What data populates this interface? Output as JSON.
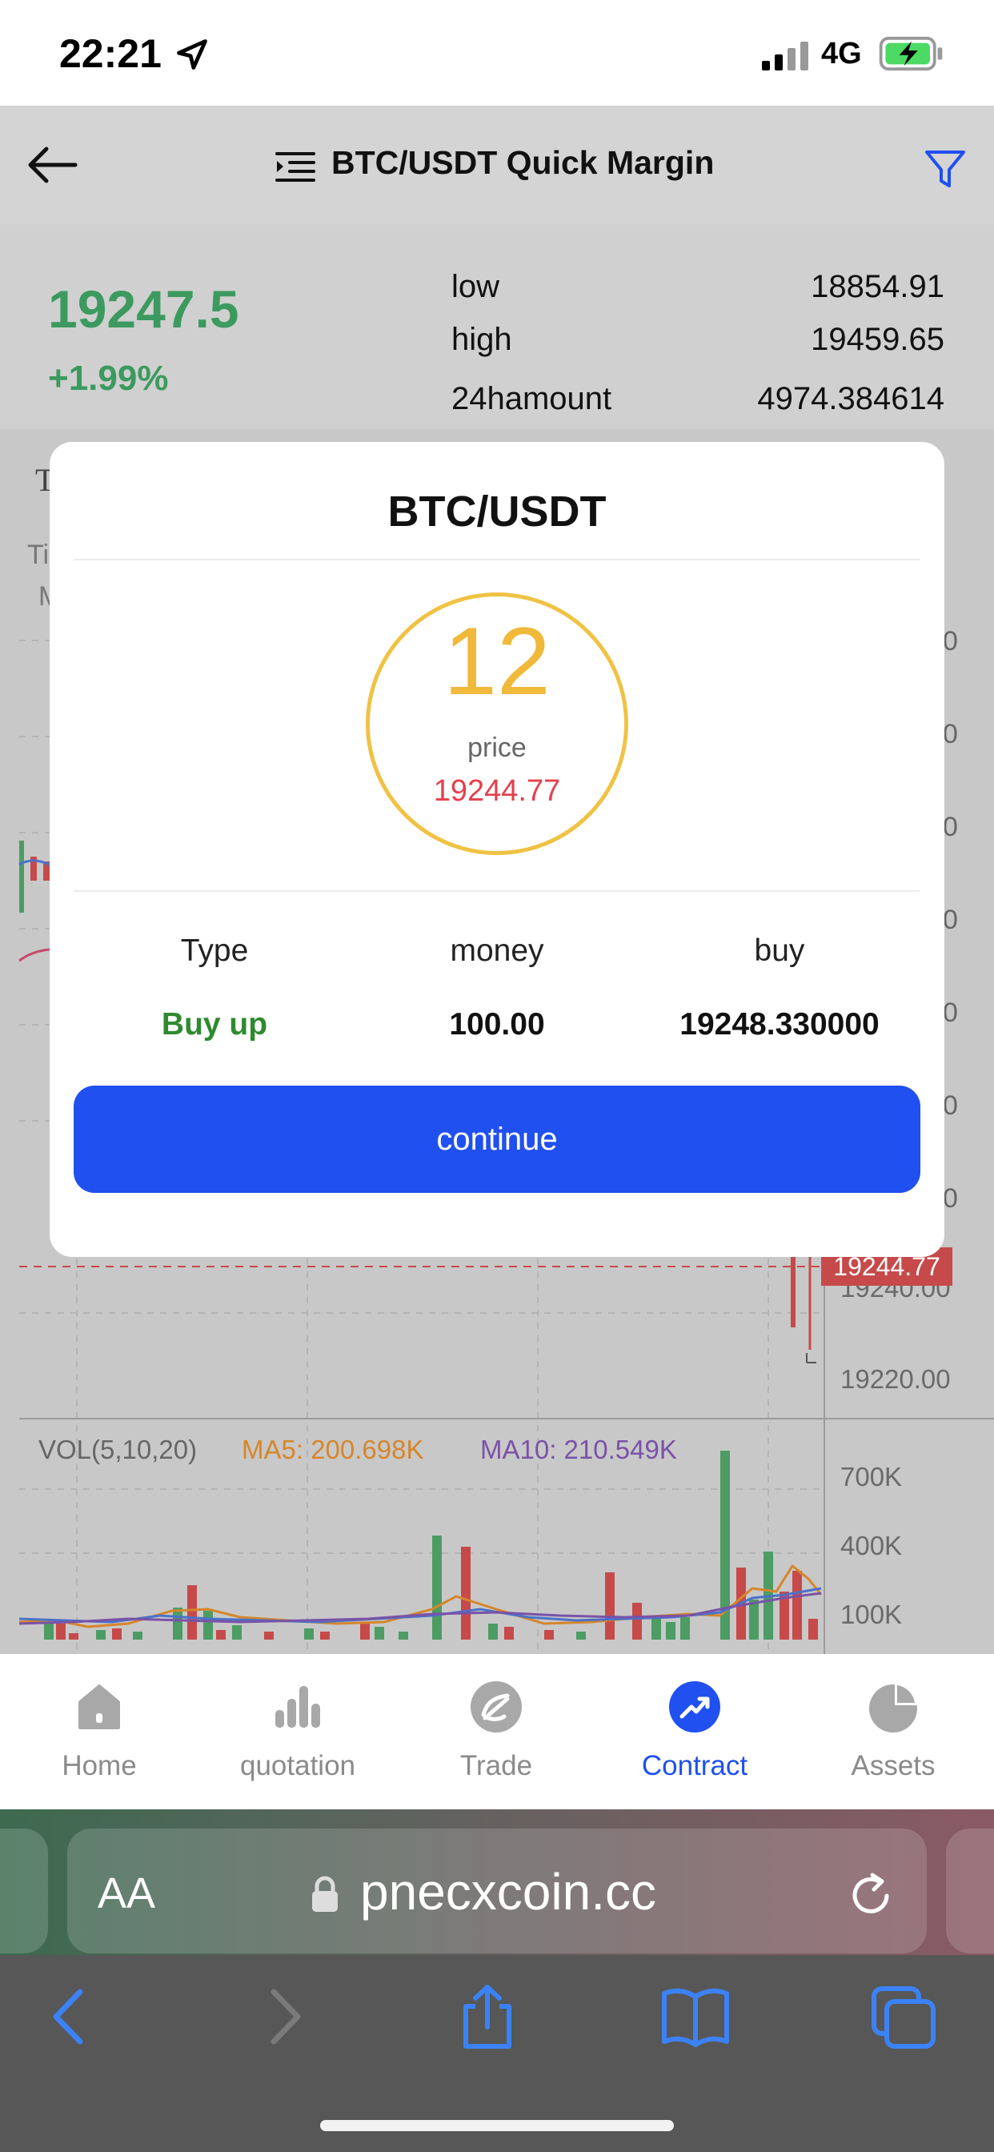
{
  "status_bar": {
    "time": "22:21",
    "network": "4G"
  },
  "header": {
    "title": "BTC/USDT Quick Margin"
  },
  "ticker": {
    "price": "19247.5",
    "change": "+1.99%",
    "stats": [
      {
        "label": "low",
        "value": "18854.91"
      },
      {
        "label": "high",
        "value": "19459.65"
      },
      {
        "label": "24hamount",
        "value": "4974.384614"
      }
    ]
  },
  "chart": {
    "price_axis": [
      "19240.00",
      "19220.00"
    ],
    "current_price_tag": "19244.77",
    "volume": {
      "title": "VOL(5,10,20)",
      "ma5": "MA5: 200.698K",
      "ma10": "MA10: 210.549K",
      "axis": [
        "700K",
        "400K",
        "100K"
      ],
      "colors": {
        "up": "#4c9c64",
        "down": "#c64a4a",
        "ma5": "#d6862a",
        "ma10": "#7a52a8"
      }
    }
  },
  "modal": {
    "title": "BTC/USDT",
    "countdown": "12",
    "price_label": "price",
    "price_value": "19244.77",
    "columns": [
      {
        "head": "Type",
        "value": "Buy up"
      },
      {
        "head": "money",
        "value": "100.00"
      },
      {
        "head": "buy",
        "value": "19248.330000"
      }
    ],
    "continue_label": "continue"
  },
  "nav": {
    "items": [
      {
        "label": "Home",
        "icon": "home-icon"
      },
      {
        "label": "quotation",
        "icon": "bar-chart-icon"
      },
      {
        "label": "Trade",
        "icon": "trade-icon"
      },
      {
        "label": "Contract",
        "icon": "trend-up-icon",
        "active": true
      },
      {
        "label": "Assets",
        "icon": "pie-chart-icon"
      }
    ]
  },
  "browser": {
    "aa": "AA",
    "url": "pnecxcoin.cc"
  }
}
